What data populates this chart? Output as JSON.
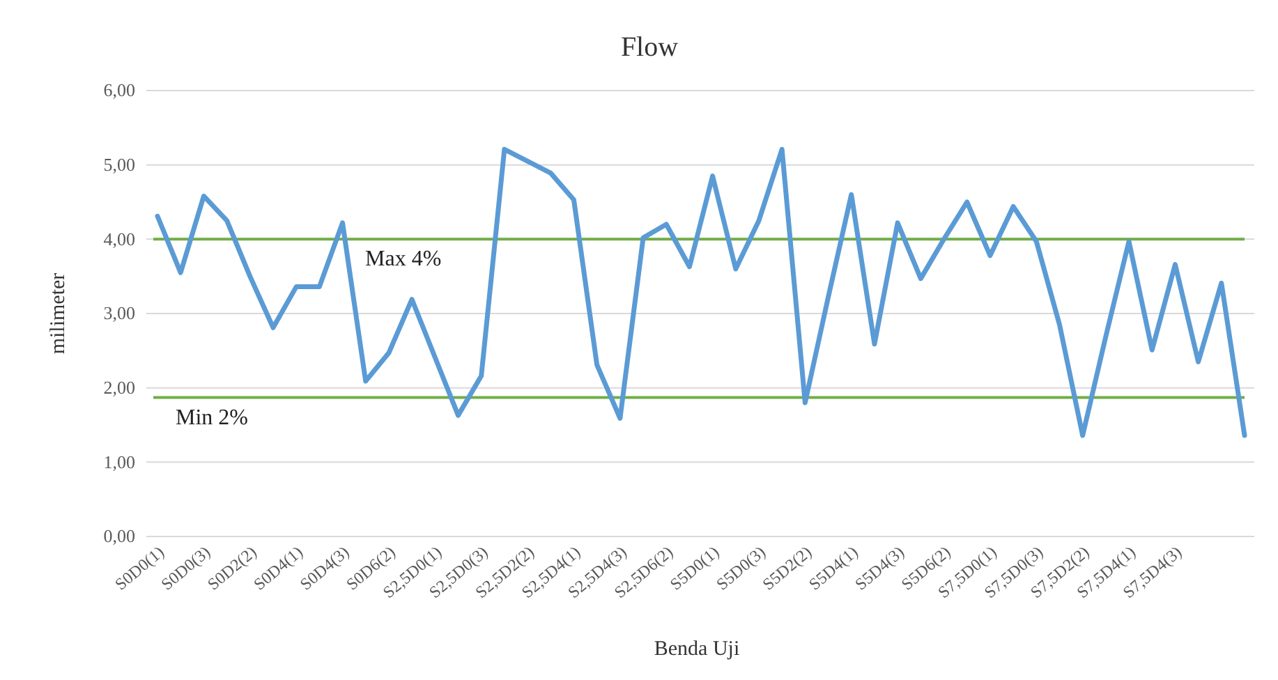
{
  "chart_data": {
    "type": "line",
    "title": "Flow",
    "xlabel": "Benda Uji",
    "ylabel": "milimeter",
    "categories": [
      "S0D0(1)",
      null,
      "S0D0(3)",
      null,
      "S0D2(2)",
      null,
      "S0D4(1)",
      null,
      "S0D4(3)",
      null,
      "S0D6(2)",
      null,
      "S2,5D0(1)",
      null,
      "S2,5D0(3)",
      null,
      "S2,5D2(2)",
      null,
      "S2,5D4(1)",
      null,
      "S2,5D4(3)",
      null,
      "S2,5D6(2)",
      null,
      "S5D0(1)",
      null,
      "S5D0(3)",
      null,
      "S5D2(2)",
      null,
      "S5D4(1)",
      null,
      "S5D4(3)",
      null,
      "S5D6(2)",
      null,
      "S7,5D0(1)",
      null,
      "S7,5D0(3)",
      null,
      "S7,5D2(2)",
      null,
      "S7,5D4(1)",
      null,
      "S7,5D4(3)",
      null,
      null,
      null
    ],
    "series": [
      {
        "color": "#5b9bd5",
        "values": [
          4.31,
          3.55,
          4.58,
          4.25,
          3.5,
          2.81,
          3.36,
          3.36,
          4.22,
          2.09,
          2.47,
          3.19,
          2.41,
          1.63,
          2.16,
          5.21,
          5.05,
          4.89,
          4.53,
          2.31,
          1.59,
          4.02,
          4.2,
          3.63,
          4.85,
          3.6,
          4.25,
          5.21,
          1.8,
          3.22,
          4.6,
          2.59,
          4.22,
          3.47,
          4.0,
          4.5,
          3.78,
          4.44,
          3.97,
          2.85,
          1.36,
          2.69,
          3.97,
          2.51,
          3.66,
          2.35,
          3.41,
          1.36
        ]
      }
    ],
    "ylim": [
      0,
      6
    ],
    "yticks": [
      {
        "value": 0,
        "label": "0,00"
      },
      {
        "value": 1,
        "label": "1,00"
      },
      {
        "value": 2,
        "label": "2,00"
      },
      {
        "value": 3,
        "label": "3,00"
      },
      {
        "value": 4,
        "label": "4,00"
      },
      {
        "value": 5,
        "label": "5,00"
      },
      {
        "value": 6,
        "label": "6,00"
      }
    ],
    "grid": "y",
    "marker": "none",
    "line_style": "solid",
    "ref_lines": [
      {
        "axis": "y",
        "value": 4.0,
        "label": "Max 4%",
        "color": "#70ad47"
      },
      {
        "axis": "y",
        "value": 1.87,
        "label": "Min 2%",
        "color": "#70ad47"
      }
    ]
  }
}
